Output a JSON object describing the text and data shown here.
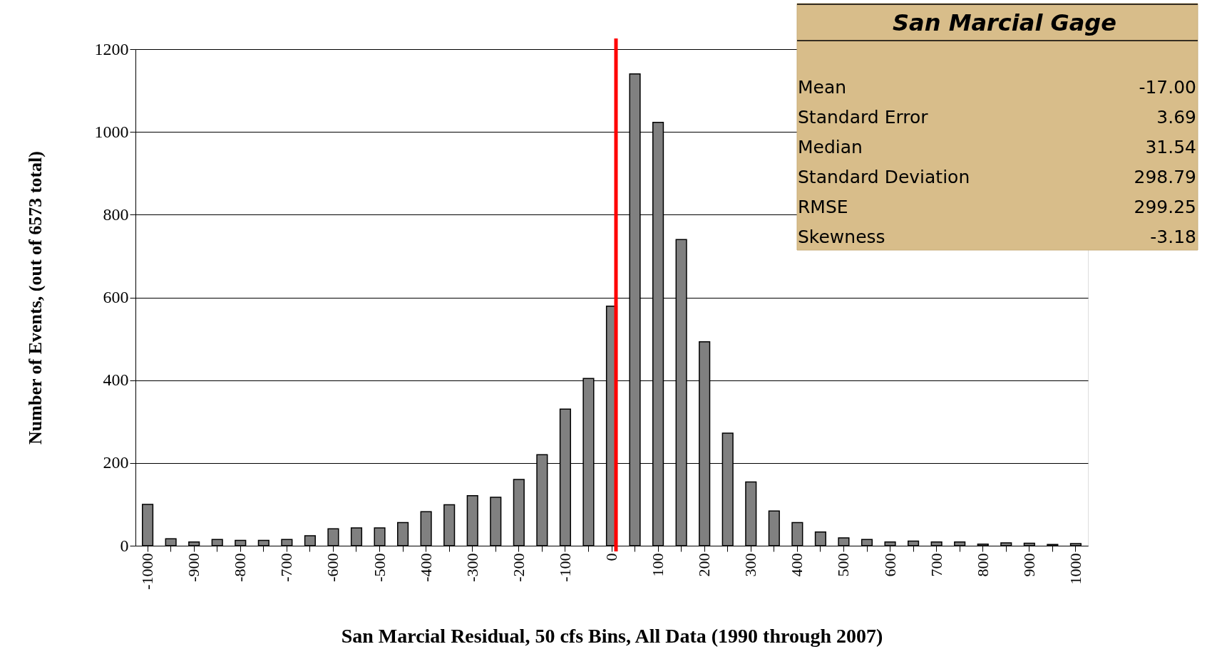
{
  "chart_data": {
    "type": "bar",
    "xlabel": "San Marcial Residual, 50 cfs Bins, All Data (1990 through 2007)",
    "ylabel": "Number of Events, (out of 6573 total)",
    "categories": [
      "-1000",
      null,
      "-900",
      null,
      "-800",
      null,
      "-700",
      null,
      "-600",
      null,
      "-500",
      null,
      "-400",
      null,
      "-300",
      null,
      "-200",
      null,
      "-100",
      null,
      "0",
      null,
      "100",
      null,
      "200",
      null,
      "300",
      null,
      "400",
      null,
      "500",
      null,
      "600",
      null,
      "700",
      null,
      "800",
      null,
      "900",
      null,
      "1000"
    ],
    "values": [
      100,
      17,
      9,
      15,
      13,
      13,
      15,
      24,
      41,
      43,
      43,
      56,
      82,
      99,
      121,
      117,
      160,
      220,
      330,
      404,
      579,
      1140,
      1023,
      740,
      493,
      272,
      154,
      84,
      56,
      33,
      19,
      15,
      9,
      11,
      9,
      9,
      4,
      7,
      6,
      3,
      5
    ],
    "color": "#808080",
    "ylim": [
      0,
      1200
    ],
    "yticks": [
      0,
      200,
      400,
      600,
      800,
      1000,
      1200
    ],
    "grid": "y",
    "ref_lines": [
      {
        "axis": "x",
        "value": "0",
        "color": "#ff0000"
      }
    ],
    "annotations": [
      "San Marcial Gage",
      "Mean",
      "-17.00",
      "Standard Error",
      "3.69",
      "Median",
      "31.54",
      "Standard Deviation",
      "298.79",
      "RMSE",
      "299.25",
      "Skewness",
      "-3.18"
    ]
  }
}
